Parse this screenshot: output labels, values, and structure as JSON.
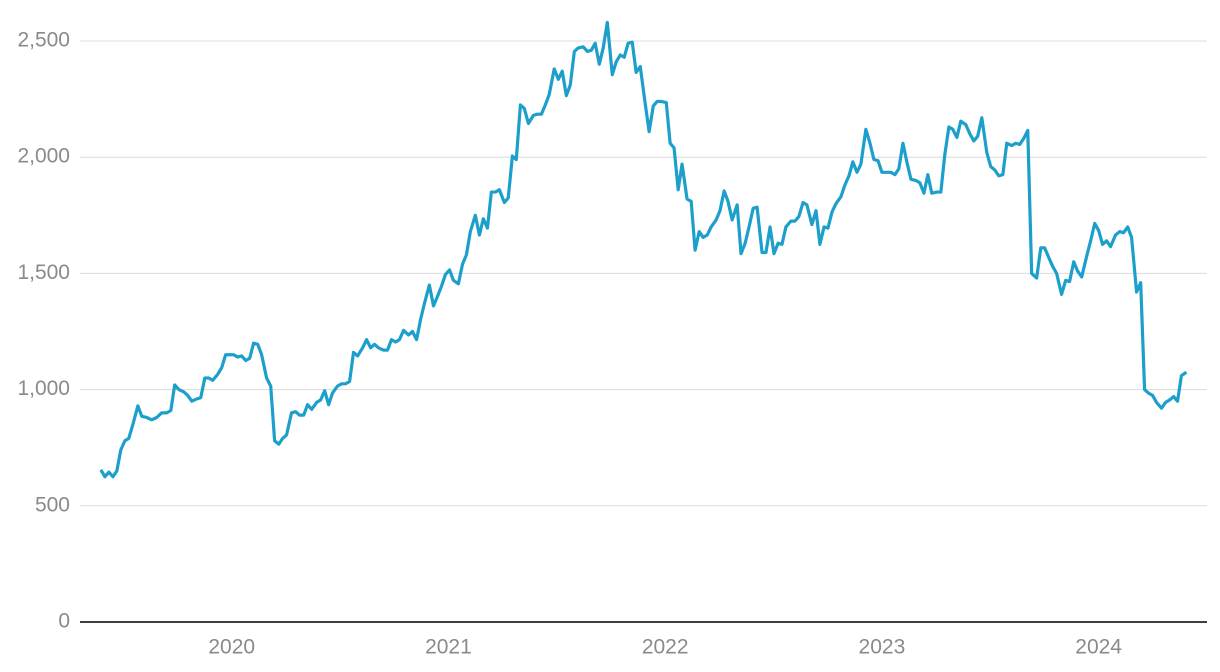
{
  "chart_data": {
    "type": "line",
    "x": [
      2019.396,
      2019.415,
      2019.433,
      2019.452,
      2019.47,
      2019.488,
      2019.507,
      2019.525,
      2019.544,
      2019.567,
      2019.585,
      2019.608,
      2019.631,
      2019.654,
      2019.677,
      2019.7,
      2019.719,
      2019.737,
      2019.756,
      2019.779,
      2019.797,
      2019.816,
      2019.839,
      2019.857,
      2019.876,
      2019.894,
      2019.912,
      2019.935,
      2019.954,
      2019.972,
      2019.991,
      2020.009,
      2020.028,
      2020.046,
      2020.065,
      2020.083,
      2020.101,
      2020.12,
      2020.138,
      2020.161,
      2020.18,
      2020.198,
      2020.217,
      2020.235,
      2020.253,
      2020.276,
      2020.295,
      2020.313,
      2020.332,
      2020.35,
      2020.369,
      2020.392,
      2020.41,
      2020.429,
      2020.447,
      2020.465,
      2020.488,
      2020.507,
      2020.525,
      2020.544,
      2020.562,
      2020.581,
      2020.604,
      2020.622,
      2020.641,
      2020.659,
      2020.677,
      2020.7,
      2020.719,
      2020.737,
      2020.756,
      2020.774,
      2020.793,
      2020.816,
      2020.834,
      2020.853,
      2020.871,
      2020.889,
      2020.912,
      2020.931,
      2020.949,
      2020.968,
      2020.986,
      2021.005,
      2021.023,
      2021.046,
      2021.065,
      2021.083,
      2021.101,
      2021.124,
      2021.143,
      2021.161,
      2021.18,
      2021.198,
      2021.217,
      2021.235,
      2021.258,
      2021.276,
      2021.295,
      2021.313,
      2021.332,
      2021.35,
      2021.369,
      2021.392,
      2021.41,
      2021.429,
      2021.447,
      2021.465,
      2021.488,
      2021.507,
      2021.525,
      2021.544,
      2021.562,
      2021.581,
      2021.599,
      2021.622,
      2021.641,
      2021.659,
      2021.677,
      2021.696,
      2021.714,
      2021.733,
      2021.756,
      2021.774,
      2021.793,
      2021.811,
      2021.829,
      2021.848,
      2021.866,
      2021.885,
      2021.908,
      2021.926,
      2021.945,
      2021.963,
      2021.982,
      2022.005,
      2022.023,
      2022.041,
      2022.06,
      2022.078,
      2022.101,
      2022.12,
      2022.138,
      2022.157,
      2022.175,
      2022.194,
      2022.212,
      2022.235,
      2022.253,
      2022.272,
      2022.29,
      2022.309,
      2022.332,
      2022.35,
      2022.369,
      2022.387,
      2022.406,
      2022.424,
      2022.447,
      2022.465,
      2022.484,
      2022.502,
      2022.521,
      2022.539,
      2022.557,
      2022.58,
      2022.599,
      2022.617,
      2022.636,
      2022.654,
      2022.677,
      2022.696,
      2022.714,
      2022.733,
      2022.751,
      2022.77,
      2022.788,
      2022.811,
      2022.829,
      2022.848,
      2022.866,
      2022.885,
      2022.903,
      2022.926,
      2022.945,
      2022.963,
      2022.982,
      2023.0,
      2023.018,
      2023.041,
      2023.06,
      2023.078,
      2023.097,
      2023.115,
      2023.134,
      2023.157,
      2023.175,
      2023.194,
      2023.212,
      2023.23,
      2023.253,
      2023.272,
      2023.29,
      2023.309,
      2023.327,
      2023.346,
      2023.364,
      2023.387,
      2023.406,
      2023.424,
      2023.442,
      2023.461,
      2023.484,
      2023.502,
      2023.521,
      2023.539,
      2023.558,
      2023.576,
      2023.599,
      2023.617,
      2023.636,
      2023.654,
      2023.673,
      2023.691,
      2023.714,
      2023.733,
      2023.751,
      2023.769,
      2023.788,
      2023.806,
      2023.829,
      2023.848,
      2023.866,
      2023.885,
      2023.903,
      2023.922,
      2023.945,
      2023.963,
      2023.982,
      2024.0,
      2024.018,
      2024.037,
      2024.055,
      2024.078,
      2024.097,
      2024.115,
      2024.134,
      2024.152,
      2024.175,
      2024.194,
      2024.212,
      2024.23,
      2024.249,
      2024.267,
      2024.29,
      2024.309,
      2024.327,
      2024.346,
      2024.364,
      2024.382,
      2024.405
    ],
    "series": [
      {
        "color": "#1d9fcb",
        "values": [
          655,
          625,
          645,
          625,
          650,
          740,
          780,
          790,
          850,
          930,
          885,
          880,
          870,
          880,
          900,
          900,
          910,
          1020,
          1000,
          990,
          975,
          950,
          960,
          965,
          1050,
          1050,
          1040,
          1065,
          1095,
          1150,
          1150,
          1150,
          1140,
          1145,
          1125,
          1135,
          1200,
          1195,
          1150,
          1050,
          1015,
          780,
          765,
          790,
          805,
          900,
          905,
          890,
          890,
          935,
          915,
          945,
          955,
          995,
          935,
          985,
          1015,
          1025,
          1025,
          1035,
          1160,
          1145,
          1180,
          1215,
          1180,
          1195,
          1180,
          1170,
          1170,
          1215,
          1205,
          1215,
          1255,
          1235,
          1250,
          1215,
          1300,
          1370,
          1450,
          1360,
          1400,
          1445,
          1495,
          1515,
          1470,
          1455,
          1540,
          1580,
          1680,
          1750,
          1665,
          1735,
          1695,
          1850,
          1850,
          1860,
          1805,
          1825,
          2005,
          1990,
          2225,
          2210,
          2145,
          2180,
          2185,
          2185,
          2225,
          2270,
          2380,
          2335,
          2370,
          2265,
          2310,
          2455,
          2470,
          2475,
          2455,
          2460,
          2490,
          2400,
          2470,
          2580,
          2355,
          2410,
          2440,
          2430,
          2490,
          2495,
          2365,
          2390,
          2230,
          2110,
          2220,
          2240,
          2240,
          2235,
          2060,
          2040,
          1860,
          1970,
          1820,
          1810,
          1600,
          1680,
          1655,
          1665,
          1700,
          1730,
          1770,
          1855,
          1810,
          1730,
          1795,
          1585,
          1630,
          1700,
          1780,
          1785,
          1590,
          1590,
          1700,
          1585,
          1630,
          1625,
          1700,
          1725,
          1725,
          1745,
          1805,
          1795,
          1710,
          1770,
          1625,
          1700,
          1695,
          1765,
          1800,
          1830,
          1880,
          1920,
          1980,
          1935,
          1970,
          2120,
          2060,
          1990,
          1985,
          1935,
          1935,
          1935,
          1925,
          1950,
          2060,
          1980,
          1905,
          1900,
          1890,
          1845,
          1925,
          1845,
          1850,
          1850,
          2010,
          2130,
          2120,
          2085,
          2155,
          2140,
          2100,
          2070,
          2090,
          2170,
          2020,
          1960,
          1945,
          1920,
          1925,
          2060,
          2050,
          2060,
          2055,
          2080,
          2115,
          1500,
          1480,
          1610,
          1610,
          1570,
          1530,
          1500,
          1410,
          1470,
          1465,
          1550,
          1510,
          1485,
          1575,
          1640,
          1715,
          1685,
          1625,
          1640,
          1615,
          1665,
          1680,
          1675,
          1700,
          1655,
          1420,
          1460,
          1000,
          985,
          975,
          945,
          920,
          945,
          955,
          970,
          950,
          1060,
          1075
        ]
      }
    ],
    "xlim": [
      2019.3,
      2024.5
    ],
    "xticks": [
      2020,
      2021,
      2022,
      2023,
      2024
    ],
    "ylim": [
      0,
      2500
    ],
    "yticks": [
      0,
      500,
      {
        "value": 1000,
        "label": "1,000"
      },
      {
        "value": 1500,
        "label": "1,500"
      },
      {
        "value": 2000,
        "label": "2,000"
      },
      {
        "value": 2500,
        "label": "2,500"
      }
    ],
    "grid": true
  }
}
